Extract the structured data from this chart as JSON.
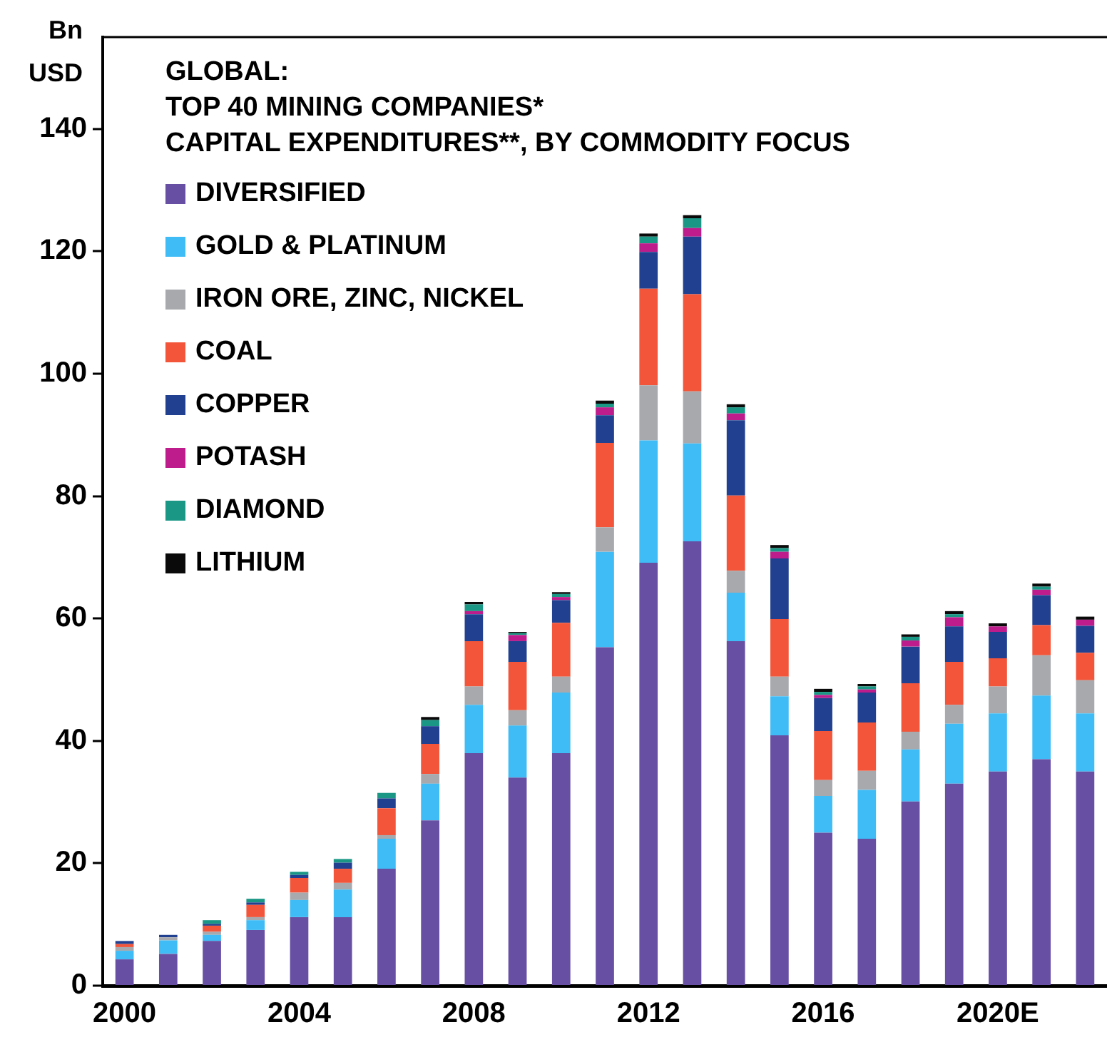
{
  "chart_data": {
    "type": "bar",
    "stacked": true,
    "title": "GLOBAL:",
    "subtitle": "TOP 40 MINING COMPANIES*\nCAPITAL EXPENDITURES**,  BY COMMODITY FOCUS",
    "ylabel": "Bn\nUSD",
    "categories": [
      "2000",
      null,
      null,
      null,
      "2004",
      null,
      null,
      null,
      "2008",
      null,
      null,
      null,
      "2012",
      null,
      null,
      null,
      "2016",
      null,
      null,
      null,
      "2020E",
      null,
      null
    ],
    "ylim": [
      0,
      155
    ],
    "yticks": [
      0,
      20,
      40,
      60,
      80,
      100,
      120,
      140
    ],
    "grid": false,
    "legend": "top left",
    "series": [
      {
        "name": "DIVERSIFIED",
        "color": "#6750a4",
        "values": [
          4.3,
          5.2,
          7.3,
          9.1,
          11.2,
          11.2,
          19.1,
          27.0,
          38.0,
          34.0,
          38.0,
          55.3,
          69.1,
          72.6,
          56.3,
          40.9,
          25.0,
          24.0,
          30.1,
          33.0,
          35.0,
          37.0,
          35.0
        ]
      },
      {
        "name": "GOLD & PLATINUM",
        "color": "#3fbcf5",
        "values": [
          1.4,
          2.2,
          1.0,
          1.6,
          2.8,
          4.5,
          4.9,
          6.0,
          7.9,
          8.5,
          9.9,
          15.6,
          20.0,
          16.0,
          7.9,
          6.4,
          6.0,
          8.0,
          8.5,
          9.8,
          9.5,
          10.4,
          9.5
        ]
      },
      {
        "name": "IRON ORE, ZINC, NICKEL",
        "color": "#a8a9ad",
        "values": [
          0.6,
          0.5,
          0.5,
          0.5,
          1.2,
          1.1,
          0.6,
          1.6,
          3.0,
          2.5,
          2.6,
          4.0,
          9.0,
          8.5,
          3.6,
          3.2,
          2.6,
          3.1,
          2.9,
          3.1,
          4.4,
          6.6,
          5.4
        ]
      },
      {
        "name": "COAL",
        "color": "#f2553a",
        "values": [
          0.5,
          0,
          1.0,
          2.0,
          2.4,
          2.3,
          4.4,
          4.9,
          7.4,
          7.9,
          8.8,
          13.8,
          15.8,
          15.9,
          12.3,
          9.4,
          8.0,
          7.9,
          7.9,
          7.0,
          4.6,
          4.9,
          4.5
        ]
      },
      {
        "name": "COPPER",
        "color": "#21408f",
        "values": [
          0.5,
          0.4,
          0.3,
          0.4,
          0.5,
          1.0,
          1.6,
          2.9,
          4.4,
          3.4,
          3.7,
          4.5,
          6.0,
          9.4,
          12.3,
          9.9,
          5.4,
          4.9,
          6.0,
          5.8,
          4.3,
          4.9,
          4.4
        ]
      },
      {
        "name": "POTASH",
        "color": "#be1b8c",
        "values": [
          0,
          0,
          0,
          0,
          0,
          0,
          0,
          0,
          0.5,
          1.0,
          0.5,
          1.3,
          1.4,
          1.4,
          1.1,
          1.1,
          0.5,
          0.5,
          1.0,
          1.5,
          0.9,
          0.9,
          1.0
        ]
      },
      {
        "name": "DIAMOND",
        "color": "#1a9785",
        "values": [
          0,
          0,
          0.6,
          0.6,
          0.5,
          0.6,
          0.9,
          1.0,
          1.1,
          0.3,
          0.5,
          0.6,
          1.1,
          1.6,
          1.0,
          0.6,
          0.5,
          0.5,
          0.6,
          0.5,
          0,
          0.5,
          0
        ]
      },
      {
        "name": "LITHIUM",
        "color": "#0a0a0a",
        "values": [
          0,
          0,
          0,
          0,
          0,
          0,
          0,
          0.5,
          0.4,
          0.2,
          0.3,
          0.5,
          0.5,
          0.5,
          0.5,
          0.5,
          0.5,
          0.4,
          0.4,
          0.5,
          0.5,
          0.5,
          0.5
        ]
      }
    ]
  }
}
